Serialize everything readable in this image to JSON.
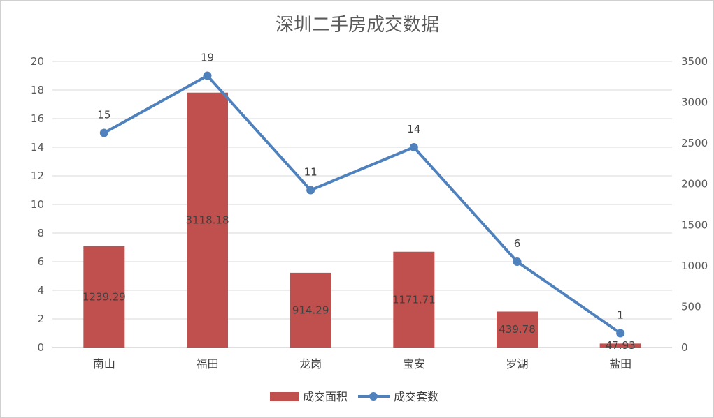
{
  "chart_data": {
    "type": "bar",
    "title": "深圳二手房成交数据",
    "categories": [
      "南山",
      "福田",
      "龙岗",
      "宝安",
      "罗湖",
      "盐田"
    ],
    "series": [
      {
        "name": "成交面积",
        "type": "bar",
        "axis": "right",
        "color": "#c0504d",
        "values": [
          1239.29,
          3118.18,
          914.29,
          1171.71,
          439.78,
          47.93
        ],
        "labels": [
          "1239.29",
          "3118.18",
          "914.29",
          "1171.71",
          "439.78",
          "47.93"
        ]
      },
      {
        "name": "成交套数",
        "type": "line",
        "axis": "left",
        "color": "#4f81bd",
        "values": [
          15,
          19,
          11,
          14,
          6,
          1
        ],
        "labels": [
          "15",
          "19",
          "11",
          "14",
          "6",
          "1"
        ]
      }
    ],
    "y_left": {
      "min": 0,
      "max": 20,
      "ticks": [
        "0",
        "2",
        "4",
        "6",
        "8",
        "10",
        "12",
        "14",
        "16",
        "18",
        "20"
      ]
    },
    "y_right": {
      "min": 0,
      "max": 3500,
      "ticks": [
        "0",
        "500",
        "1000",
        "1500",
        "2000",
        "2500",
        "3000",
        "3500"
      ]
    },
    "grid": true,
    "legend_position": "bottom"
  }
}
